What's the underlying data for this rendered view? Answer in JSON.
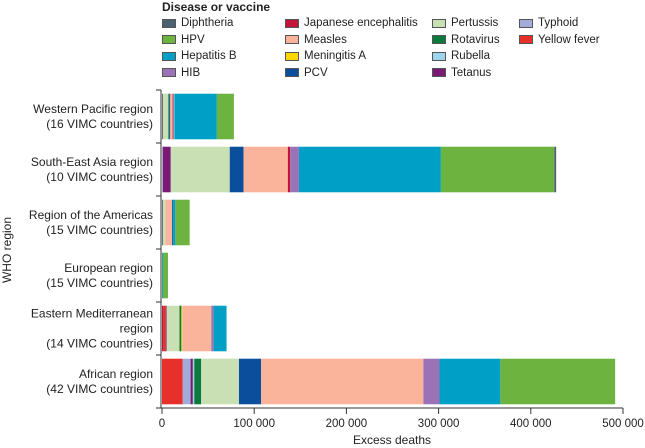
{
  "chart_data": {
    "type": "bar",
    "orientation": "horizontal",
    "stacked": true,
    "title": "",
    "legend_title": "Disease or vaccine",
    "legend_placement": "top",
    "xlabel": "Excess deaths",
    "ylabel": "WHO region",
    "xlim": [
      0,
      500000
    ],
    "xticks": [
      0,
      100000,
      200000,
      300000,
      400000,
      500000
    ],
    "xtick_labels": [
      "0",
      "100 000",
      "200 000",
      "300 000",
      "400 000",
      "500 000"
    ],
    "grid": false,
    "categories": [
      {
        "line1": "Western Pacific region",
        "line2": "(16 VIMC countries)",
        "line3": ""
      },
      {
        "line1": "South-East Asia region",
        "line2": "(10 VIMC countries)",
        "line3": ""
      },
      {
        "line1": "Region of the Americas",
        "line2": "(15 VIMC countries)",
        "line3": ""
      },
      {
        "line1": "European region",
        "line2": "(15 VIMC countries)",
        "line3": ""
      },
      {
        "line1": "Eastern Mediterranean",
        "line2": "region",
        "line3": "(14 VIMC countries)"
      },
      {
        "line1": "African region",
        "line2": "(42 VIMC countries)",
        "line3": ""
      }
    ],
    "legend": [
      {
        "name": "Diphtheria",
        "color": "#4a6170"
      },
      {
        "name": "HPV",
        "color": "#6db33f"
      },
      {
        "name": "Hepatitis B",
        "color": "#00a0c6"
      },
      {
        "name": "HIB",
        "color": "#9b72b5"
      },
      {
        "name": "Japanese encephalitis",
        "color": "#c0143c"
      },
      {
        "name": "Measles",
        "color": "#f9b49b"
      },
      {
        "name": "Meningitis A",
        "color": "#ffd700"
      },
      {
        "name": "PCV",
        "color": "#0b4f9c"
      },
      {
        "name": "Pertussis",
        "color": "#c8e0b4"
      },
      {
        "name": "Rotavirus",
        "color": "#0a7a3c"
      },
      {
        "name": "Rubella",
        "color": "#9dd6ea"
      },
      {
        "name": "Tetanus",
        "color": "#7b1a74"
      },
      {
        "name": "Typhoid",
        "color": "#a3acd9"
      },
      {
        "name": "Yellow fever",
        "color": "#e8302a"
      }
    ],
    "series_by_region": [
      {
        "region": "Western Pacific region",
        "segments": [
          {
            "name": "Diphtheria",
            "value": 1000
          },
          {
            "name": "Pertussis",
            "value": 6000
          },
          {
            "name": "PCV",
            "value": 1000
          },
          {
            "name": "Rotavirus",
            "value": 1000
          },
          {
            "name": "Measles",
            "value": 2500
          },
          {
            "name": "Japanese encephalitis",
            "value": 1000
          },
          {
            "name": "Rubella",
            "value": 1000
          },
          {
            "name": "Hepatitis B",
            "value": 46000
          },
          {
            "name": "HPV",
            "value": 18500
          }
        ]
      },
      {
        "region": "South-East Asia region",
        "segments": [
          {
            "name": "Typhoid",
            "value": 1000
          },
          {
            "name": "Tetanus",
            "value": 8500
          },
          {
            "name": "Pertussis",
            "value": 64000
          },
          {
            "name": "PCV",
            "value": 15000
          },
          {
            "name": "Measles",
            "value": 48000
          },
          {
            "name": "Japanese encephalitis",
            "value": 2500
          },
          {
            "name": "HIB",
            "value": 9500
          },
          {
            "name": "Hepatitis B",
            "value": 154000
          },
          {
            "name": "HPV",
            "value": 123000
          },
          {
            "name": "Diphtheria",
            "value": 2000
          }
        ]
      },
      {
        "region": "Region of the Americas",
        "segments": [
          {
            "name": "Diphtheria",
            "value": 1000
          },
          {
            "name": "Pertussis",
            "value": 2500
          },
          {
            "name": "Measles",
            "value": 7500
          },
          {
            "name": "PCV",
            "value": 1000
          },
          {
            "name": "Hepatitis B",
            "value": 2500
          },
          {
            "name": "HPV",
            "value": 15500
          }
        ]
      },
      {
        "region": "European region",
        "segments": [
          {
            "name": "Hepatitis B",
            "value": 1000
          },
          {
            "name": "HPV",
            "value": 5500
          }
        ]
      },
      {
        "region": "Eastern Mediterranean region",
        "segments": [
          {
            "name": "Japanese encephalitis",
            "value": 1500
          },
          {
            "name": "Yellow fever",
            "value": 2500
          },
          {
            "name": "Tetanus",
            "value": 1000
          },
          {
            "name": "Pertussis",
            "value": 14000
          },
          {
            "name": "Rotavirus",
            "value": 2000
          },
          {
            "name": "Meningitis A",
            "value": 1000
          },
          {
            "name": "Measles",
            "value": 31500
          },
          {
            "name": "HIB",
            "value": 2500
          },
          {
            "name": "Hepatitis B",
            "value": 14000
          }
        ]
      },
      {
        "region": "African region",
        "segments": [
          {
            "name": "Yellow fever",
            "value": 22500
          },
          {
            "name": "Typhoid",
            "value": 8500
          },
          {
            "name": "Tetanus",
            "value": 2500
          },
          {
            "name": "Rubella",
            "value": 1500
          },
          {
            "name": "Rotavirus",
            "value": 7500
          },
          {
            "name": "Pertussis",
            "value": 41000
          },
          {
            "name": "PCV",
            "value": 24000
          },
          {
            "name": "Measles",
            "value": 176000
          },
          {
            "name": "HIB",
            "value": 17500
          },
          {
            "name": "Hepatitis B",
            "value": 66000
          },
          {
            "name": "HPV",
            "value": 124500
          }
        ]
      }
    ]
  }
}
